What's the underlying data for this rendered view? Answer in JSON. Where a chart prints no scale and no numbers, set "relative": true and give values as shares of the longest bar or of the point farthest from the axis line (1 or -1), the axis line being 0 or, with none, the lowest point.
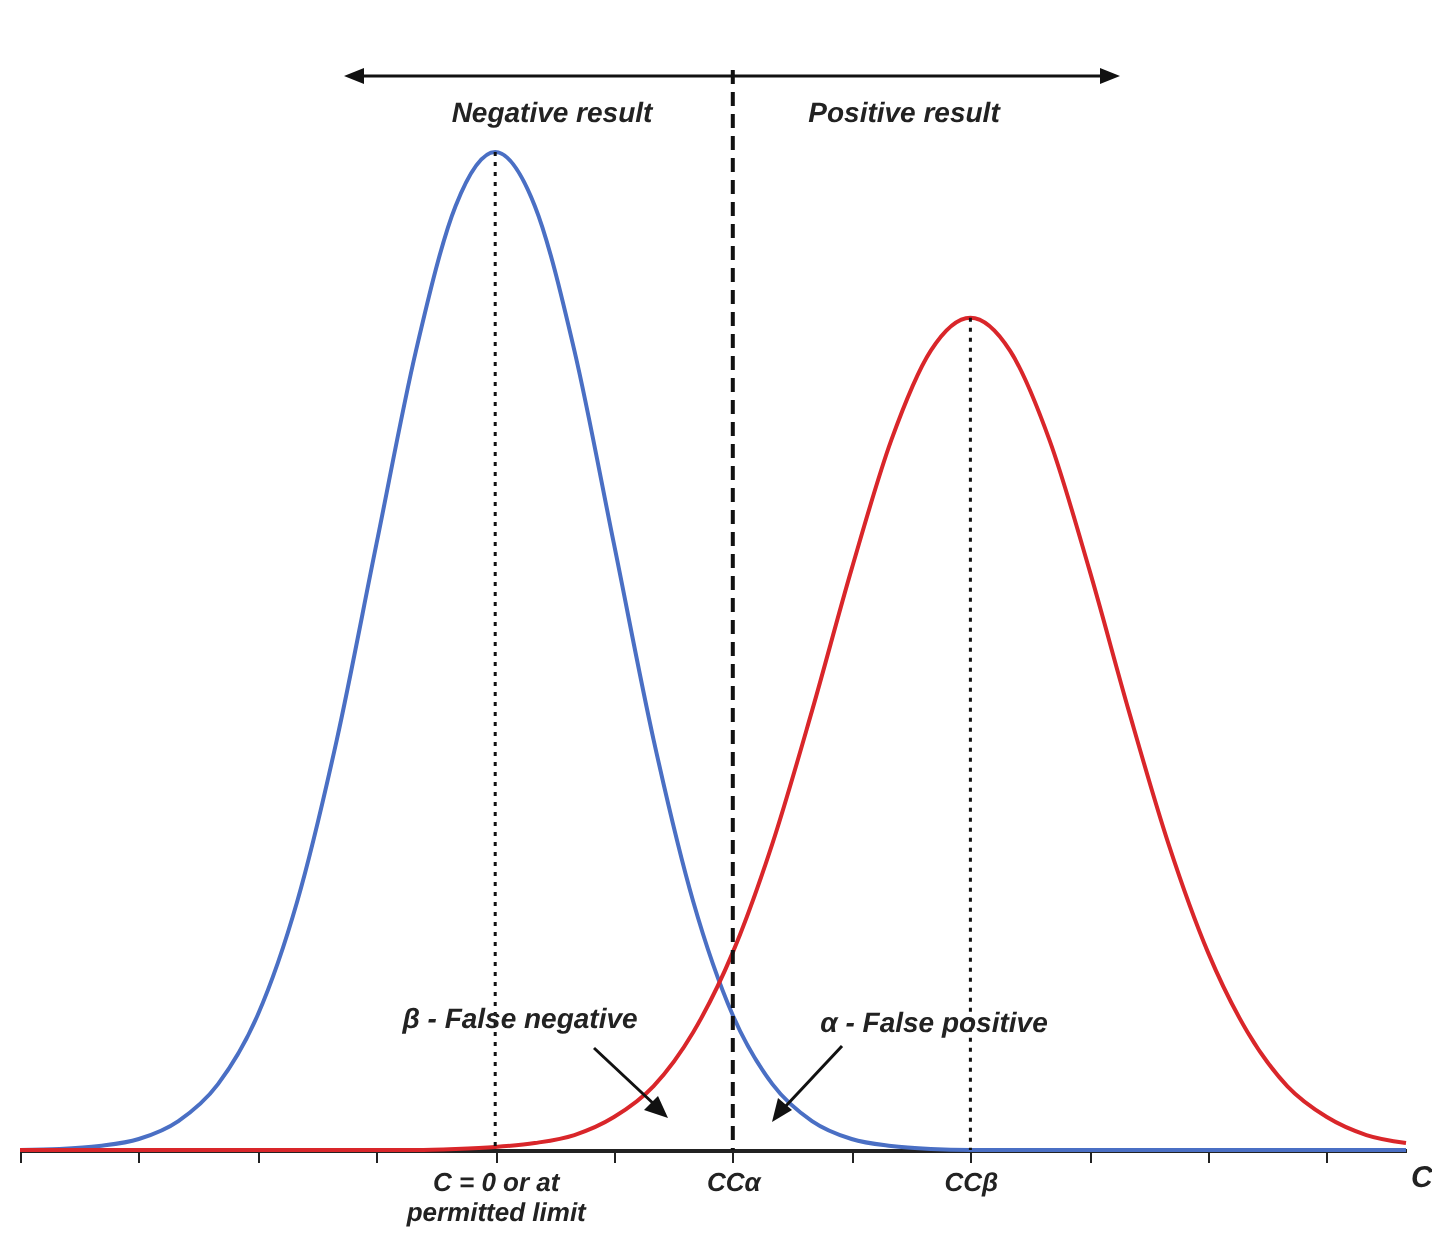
{
  "chart_data": {
    "type": "line",
    "relative": true,
    "xlabel": "C",
    "categories": [
      null,
      null,
      null,
      null,
      null,
      null,
      null,
      null,
      null,
      null,
      null,
      null,
      "C = 0 or at permitted limit",
      null,
      null,
      null,
      null,
      null,
      "CCα",
      null,
      null,
      null,
      null,
      null,
      "CCβ",
      null,
      null,
      null,
      null,
      null,
      null,
      null,
      null,
      null,
      null,
      null
    ],
    "series": [
      {
        "color": "#4a6fc4",
        "values": [
          0,
          0.001,
          0.004,
          0.011,
          0.029,
          0.066,
          0.135,
          0.249,
          0.411,
          0.607,
          0.801,
          0.946,
          1,
          0.946,
          0.801,
          0.607,
          0.411,
          0.249,
          0.135,
          0.066,
          0.029,
          0.011,
          0.004,
          0.001,
          0,
          0,
          0,
          0,
          0,
          0,
          0,
          0,
          0,
          0,
          0,
          0
        ]
      },
      {
        "color": "#d9262a",
        "values": [
          0,
          0,
          0,
          0,
          0,
          0,
          0,
          0,
          0,
          0,
          0,
          0.001,
          0.003,
          0.007,
          0.015,
          0.033,
          0.064,
          0.118,
          0.198,
          0.307,
          0.44,
          0.582,
          0.711,
          0.801,
          0.834,
          0.801,
          0.711,
          0.582,
          0.44,
          0.307,
          0.198,
          0.118,
          0.064,
          0.033,
          0.015,
          0.007
        ]
      }
    ],
    "ref_lines": [
      {
        "axis": "x",
        "value": "CCα",
        "line_style": "dashed"
      },
      {
        "axis": "x",
        "value": "C = 0 or at permitted limit",
        "line_style": "dotted"
      },
      {
        "axis": "x",
        "value": "CCβ",
        "line_style": "dotted"
      }
    ],
    "annotations": [
      "Negative result",
      "Positive result",
      "β - False negative",
      "α - False positive"
    ]
  }
}
